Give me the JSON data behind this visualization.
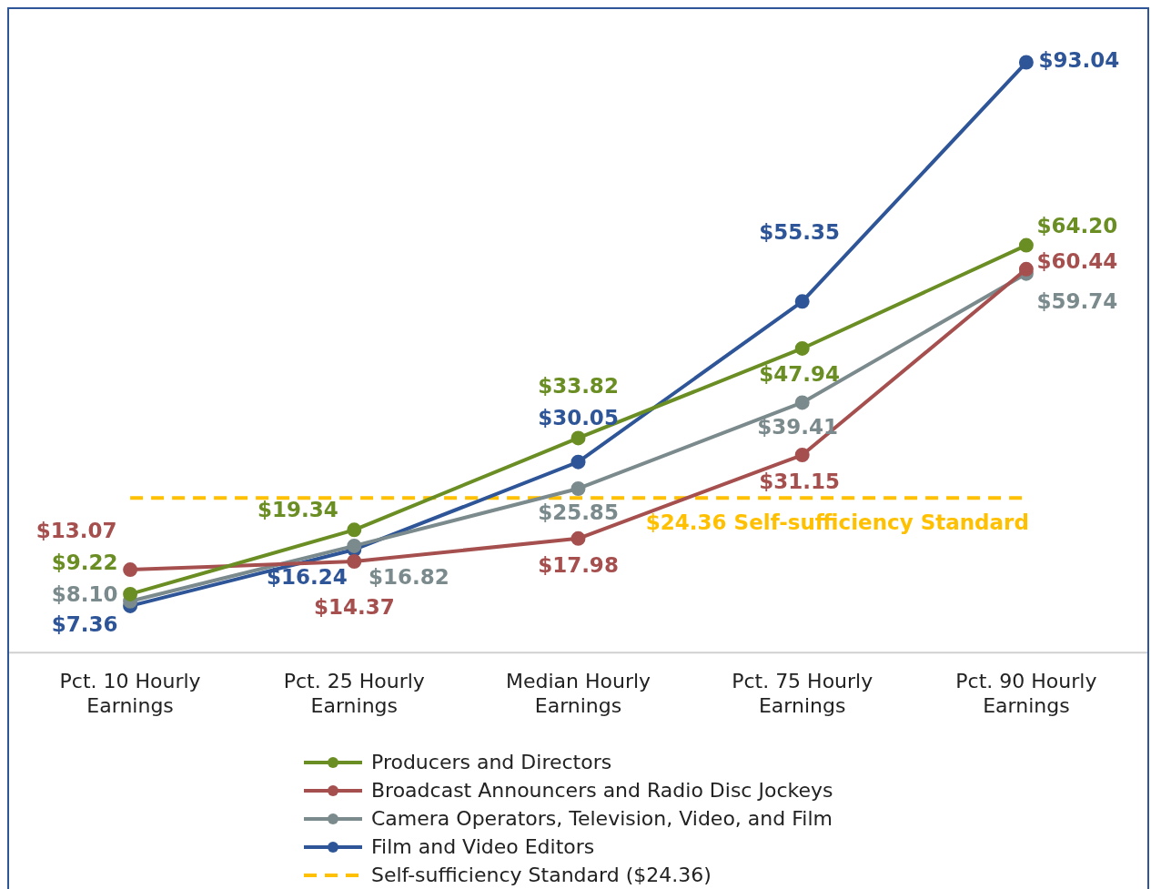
{
  "chart_data": {
    "type": "line",
    "categories": [
      "Pct. 10 Hourly Earnings",
      "Pct. 25 Hourly Earnings",
      "Median Hourly Earnings",
      "Pct. 75 Hourly Earnings",
      "Pct. 90 Hourly Earnings"
    ],
    "series": [
      {
        "name": "Producers and Directors",
        "color": "#6a8e23",
        "values": [
          9.22,
          19.34,
          33.82,
          47.94,
          64.2
        ],
        "value_labels": [
          "$9.22",
          "$19.34",
          "$33.82",
          "$47.94",
          "$64.20"
        ]
      },
      {
        "name": "Broadcast Announcers and Radio Disc Jockeys",
        "color": "#a5504e",
        "values": [
          13.07,
          14.37,
          17.98,
          31.15,
          60.44
        ],
        "value_labels": [
          "$13.07",
          "$14.37",
          "$17.98",
          "$31.15",
          "$60.44"
        ]
      },
      {
        "name": "Camera Operators, Television, Video, and Film",
        "color": "#7b8a8c",
        "values": [
          8.1,
          16.82,
          25.85,
          39.41,
          59.74
        ],
        "value_labels": [
          "$8.10",
          "$16.82",
          "$25.85",
          "$39.41",
          "$59.74"
        ]
      },
      {
        "name": "Film and Video Editors",
        "color": "#2e5597",
        "values": [
          7.36,
          16.24,
          30.05,
          55.35,
          93.04
        ],
        "value_labels": [
          "$7.36",
          "$16.24",
          "$30.05",
          "$55.35",
          "$93.04"
        ]
      },
      {
        "name": "Self-sufficiency Standard ($24.36)",
        "color": "#ffc000",
        "values": [
          24.36,
          24.36,
          24.36,
          24.36,
          24.36
        ],
        "line_style": "dashed",
        "marker": "none"
      }
    ],
    "annotations": [
      {
        "text": "$24.36 Self-sufficiency Standard",
        "x": "Pct. 90 Hourly Earnings",
        "y": 24.36
      }
    ],
    "marker": "circle",
    "line_style": "solid",
    "legend": "bottom",
    "grid": false,
    "tick_labels": "x"
  }
}
